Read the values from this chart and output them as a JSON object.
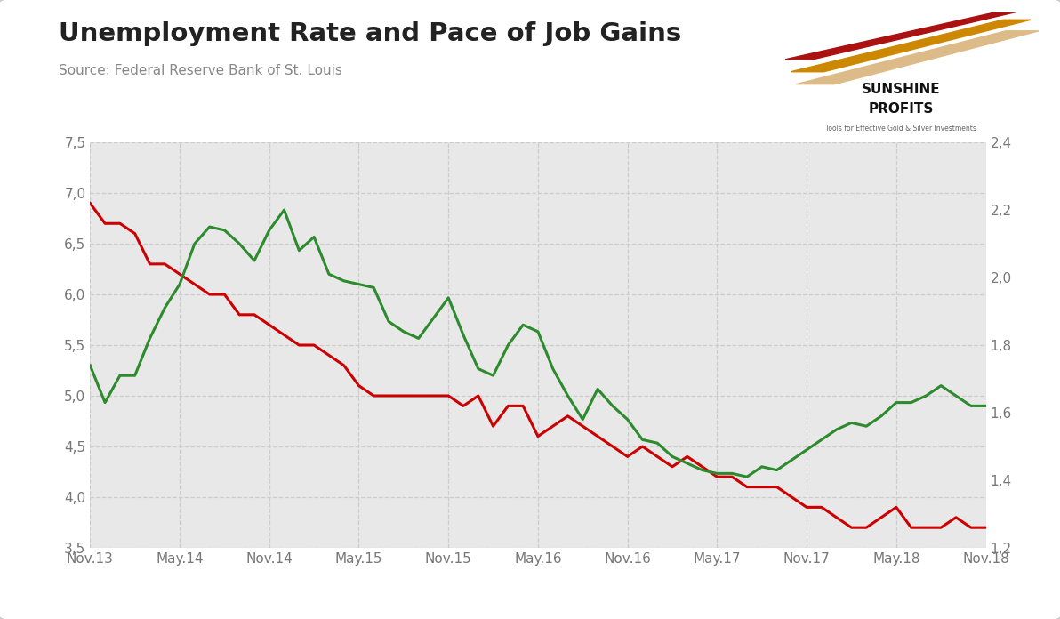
{
  "title": "Unemployment Rate and Pace of Job Gains",
  "source": "Source: Federal Reserve Bank of St. Louis",
  "plot_bg_color": "#e8e8e8",
  "outer_background": "#ffffff",
  "grid_color": "#cccccc",
  "title_color": "#222222",
  "source_color": "#888888",
  "left_ylim": [
    3.5,
    7.5
  ],
  "right_ylim": [
    1.2,
    2.4
  ],
  "left_yticks": [
    3.5,
    4.0,
    4.5,
    5.0,
    5.5,
    6.0,
    6.5,
    7.0,
    7.5
  ],
  "right_yticks": [
    1.2,
    1.4,
    1.6,
    1.8,
    2.0,
    2.2,
    2.4
  ],
  "x_labels": [
    "Nov.13",
    "May.14",
    "Nov.14",
    "May.15",
    "Nov.15",
    "May.16",
    "Nov.16",
    "May.17",
    "Nov.17",
    "May.18",
    "Nov.18"
  ],
  "red_line_color": "#cc0000",
  "green_line_color": "#2d8a2d",
  "red_data": [
    6.9,
    6.7,
    6.7,
    6.6,
    6.3,
    6.3,
    6.2,
    6.1,
    6.0,
    6.0,
    5.8,
    5.8,
    5.7,
    5.6,
    5.5,
    5.5,
    5.4,
    5.3,
    5.1,
    5.0,
    5.0,
    5.0,
    5.0,
    5.0,
    5.0,
    4.9,
    5.0,
    4.7,
    4.9,
    4.9,
    4.6,
    4.7,
    4.8,
    4.7,
    4.6,
    4.5,
    4.4,
    4.5,
    4.4,
    4.3,
    4.4,
    4.3,
    4.2,
    4.2,
    4.1,
    4.1,
    4.1,
    4.0,
    3.9,
    3.9,
    3.8,
    3.7,
    3.7,
    3.8,
    3.9,
    3.7,
    3.7,
    3.7,
    3.8,
    3.7,
    3.7
  ],
  "green_data": [
    1.74,
    1.63,
    1.71,
    1.71,
    1.82,
    1.91,
    1.98,
    2.1,
    2.15,
    2.14,
    2.1,
    2.05,
    2.14,
    2.2,
    2.08,
    2.12,
    2.01,
    1.99,
    1.98,
    1.97,
    1.87,
    1.84,
    1.82,
    1.88,
    1.94,
    1.83,
    1.73,
    1.71,
    1.8,
    1.86,
    1.84,
    1.73,
    1.65,
    1.58,
    1.67,
    1.62,
    1.58,
    1.52,
    1.51,
    1.47,
    1.45,
    1.43,
    1.42,
    1.42,
    1.41,
    1.44,
    1.43,
    1.46,
    1.49,
    1.52,
    1.55,
    1.57,
    1.56,
    1.59,
    1.63,
    1.63,
    1.65,
    1.68,
    1.65,
    1.62,
    1.62
  ],
  "n_points": 61,
  "line_width": 2.2
}
